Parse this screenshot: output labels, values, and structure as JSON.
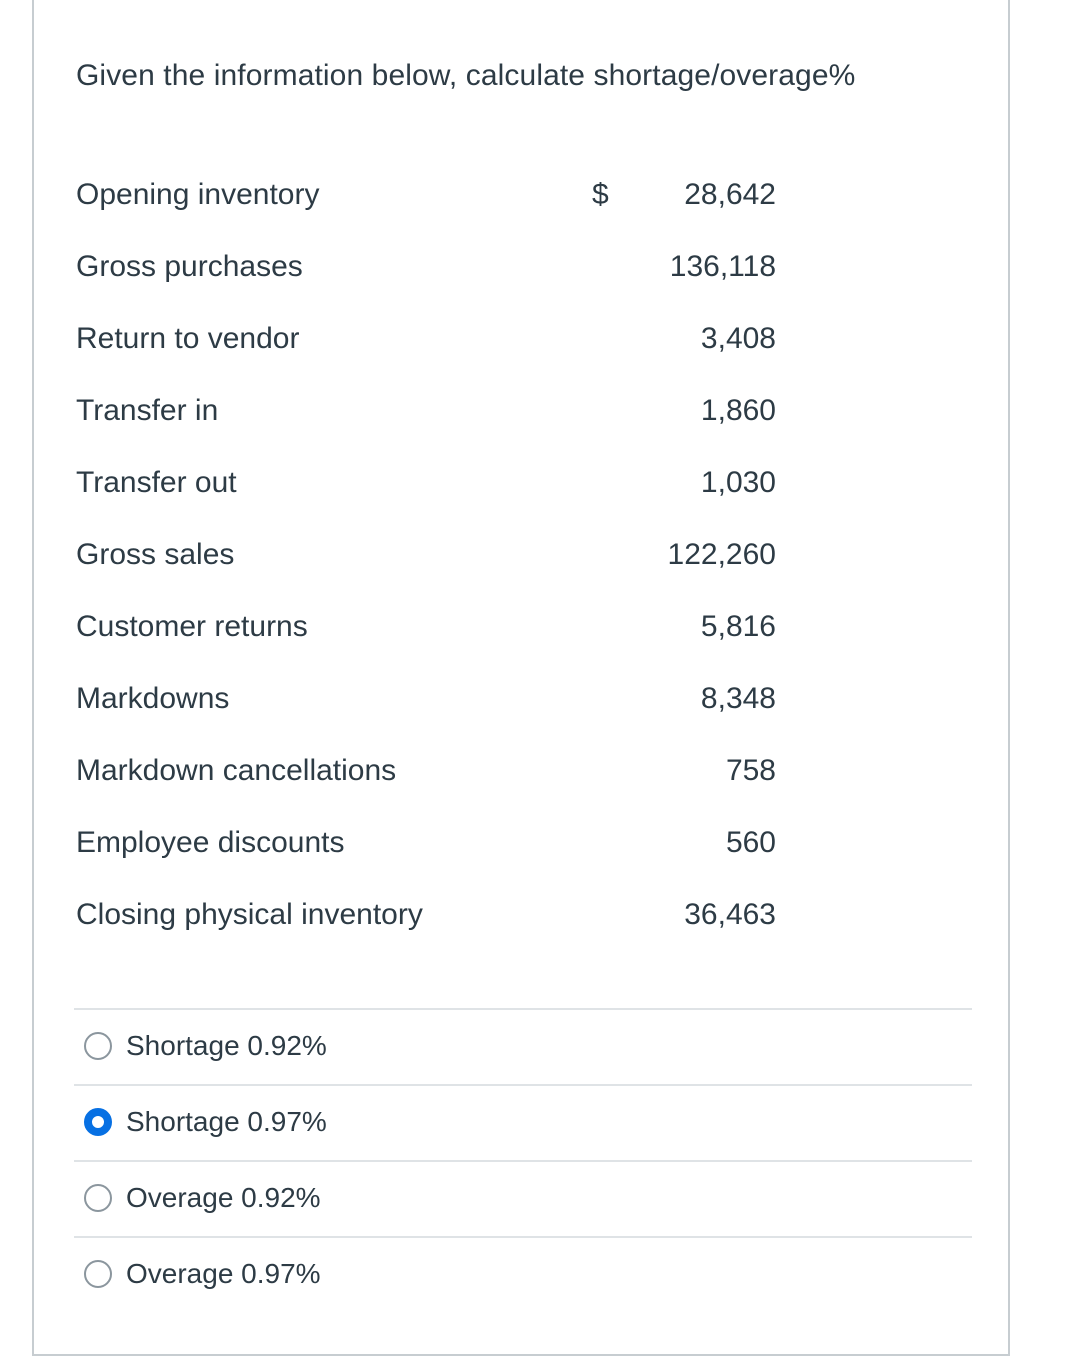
{
  "question": {
    "prompt": "Given the information below, calculate shortage/overage%",
    "currency_symbol": "$",
    "rows": [
      {
        "label": "Opening inventory",
        "value": "28,642"
      },
      {
        "label": "Gross purchases",
        "value": "136,118"
      },
      {
        "label": "Return to vendor",
        "value": "3,408"
      },
      {
        "label": "Transfer in",
        "value": "1,860"
      },
      {
        "label": "Transfer out",
        "value": "1,030"
      },
      {
        "label": "Gross sales",
        "value": "122,260"
      },
      {
        "label": "Customer returns",
        "value": "5,816"
      },
      {
        "label": "Markdowns",
        "value": "8,348"
      },
      {
        "label": "Markdown cancellations",
        "value": "758"
      },
      {
        "label": "Employee discounts",
        "value": "560"
      },
      {
        "label": "Closing physical inventory",
        "value": "36,463"
      }
    ]
  },
  "answers": [
    {
      "label": "Shortage 0.92%",
      "selected": false
    },
    {
      "label": "Shortage 0.97%",
      "selected": true
    },
    {
      "label": "Overage 0.92%",
      "selected": false
    },
    {
      "label": "Overage 0.97%",
      "selected": false
    }
  ],
  "colors": {
    "text": "#2d3b45",
    "border": "#c7cdd1",
    "divider": "#dfe3e6",
    "radio_selected": "#0770e3",
    "radio_unselected": "#8b969e"
  }
}
